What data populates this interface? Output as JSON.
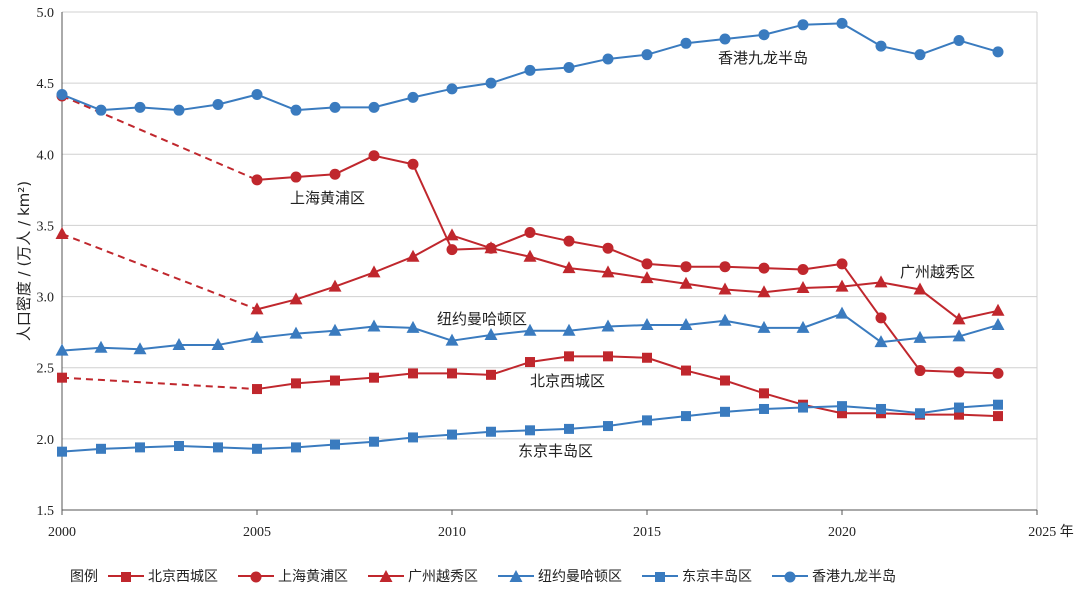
{
  "chart_data": {
    "type": "line",
    "title": "",
    "xlabel": "年",
    "ylabel": "人口密度 / (万人 / km²)",
    "xlim": [
      2000,
      2025
    ],
    "ylim": [
      1.5,
      5.0
    ],
    "xticks": [
      "2000",
      "2005",
      "2010",
      "2015",
      "2020",
      "2025 年"
    ],
    "yticks": [
      "1.5",
      "2.0",
      "2.5",
      "3.0",
      "3.5",
      "4.0",
      "4.5",
      "5.0"
    ],
    "grid": "horizontal",
    "legend_title": "图例",
    "legend_position": "bottom",
    "x": [
      2000,
      2001,
      2002,
      2003,
      2004,
      2005,
      2006,
      2007,
      2008,
      2009,
      2010,
      2011,
      2012,
      2013,
      2014,
      2015,
      2016,
      2017,
      2018,
      2019,
      2020,
      2021,
      2022,
      2023,
      2024
    ],
    "series": [
      {
        "name": "北京西城区",
        "color": "#c0272d",
        "marker": "square",
        "values": [
          2.43,
          null,
          null,
          null,
          null,
          2.35,
          2.39,
          2.41,
          2.43,
          2.46,
          2.46,
          2.45,
          2.54,
          2.58,
          2.58,
          2.57,
          2.48,
          2.41,
          2.32,
          2.24,
          2.18,
          2.18,
          2.17,
          2.17,
          2.16
        ]
      },
      {
        "name": "上海黄浦区",
        "color": "#c0272d",
        "marker": "circle",
        "values": [
          4.41,
          null,
          null,
          null,
          null,
          3.82,
          3.84,
          3.86,
          3.99,
          3.93,
          3.33,
          3.34,
          3.45,
          3.39,
          3.34,
          3.23,
          3.21,
          3.21,
          3.2,
          3.19,
          3.23,
          2.85,
          2.48,
          2.47,
          2.46
        ]
      },
      {
        "name": "广州越秀区",
        "color": "#c0272d",
        "marker": "triangle",
        "values": [
          3.44,
          null,
          null,
          null,
          null,
          2.91,
          2.98,
          3.07,
          3.17,
          3.28,
          3.43,
          3.34,
          3.28,
          3.2,
          3.17,
          3.13,
          3.09,
          3.05,
          3.03,
          3.06,
          3.07,
          3.1,
          3.05,
          2.84,
          2.9
        ]
      },
      {
        "name": "纽约曼哈顿区",
        "color": "#3a7bbf",
        "marker": "triangle",
        "values": [
          2.62,
          2.64,
          2.63,
          2.66,
          2.66,
          2.71,
          2.74,
          2.76,
          2.79,
          2.78,
          2.69,
          2.73,
          2.76,
          2.76,
          2.79,
          2.8,
          2.8,
          2.83,
          2.78,
          2.78,
          2.88,
          2.68,
          2.71,
          2.72,
          2.8
        ]
      },
      {
        "name": "东京丰岛区",
        "color": "#3a7bbf",
        "marker": "square",
        "values": [
          1.91,
          1.93,
          1.94,
          1.95,
          1.94,
          1.93,
          1.94,
          1.96,
          1.98,
          2.01,
          2.03,
          2.05,
          2.06,
          2.07,
          2.09,
          2.13,
          2.16,
          2.19,
          2.21,
          2.22,
          2.23,
          2.21,
          2.18,
          2.22,
          2.24
        ]
      },
      {
        "name": "香港九龙半岛",
        "color": "#3a7bbf",
        "marker": "circle",
        "values": [
          4.42,
          4.31,
          4.33,
          4.31,
          4.35,
          4.42,
          4.31,
          4.33,
          4.33,
          4.4,
          4.46,
          4.5,
          4.59,
          4.61,
          4.67,
          4.7,
          4.78,
          4.81,
          4.84,
          4.91,
          4.92,
          4.76,
          4.7,
          4.8,
          4.72
        ]
      }
    ],
    "annotations": [
      "北京西城区",
      "上海黄浦区",
      "广州越秀区",
      "纽约曼哈顿区",
      "东京丰岛区",
      "香港九龙半岛"
    ]
  }
}
